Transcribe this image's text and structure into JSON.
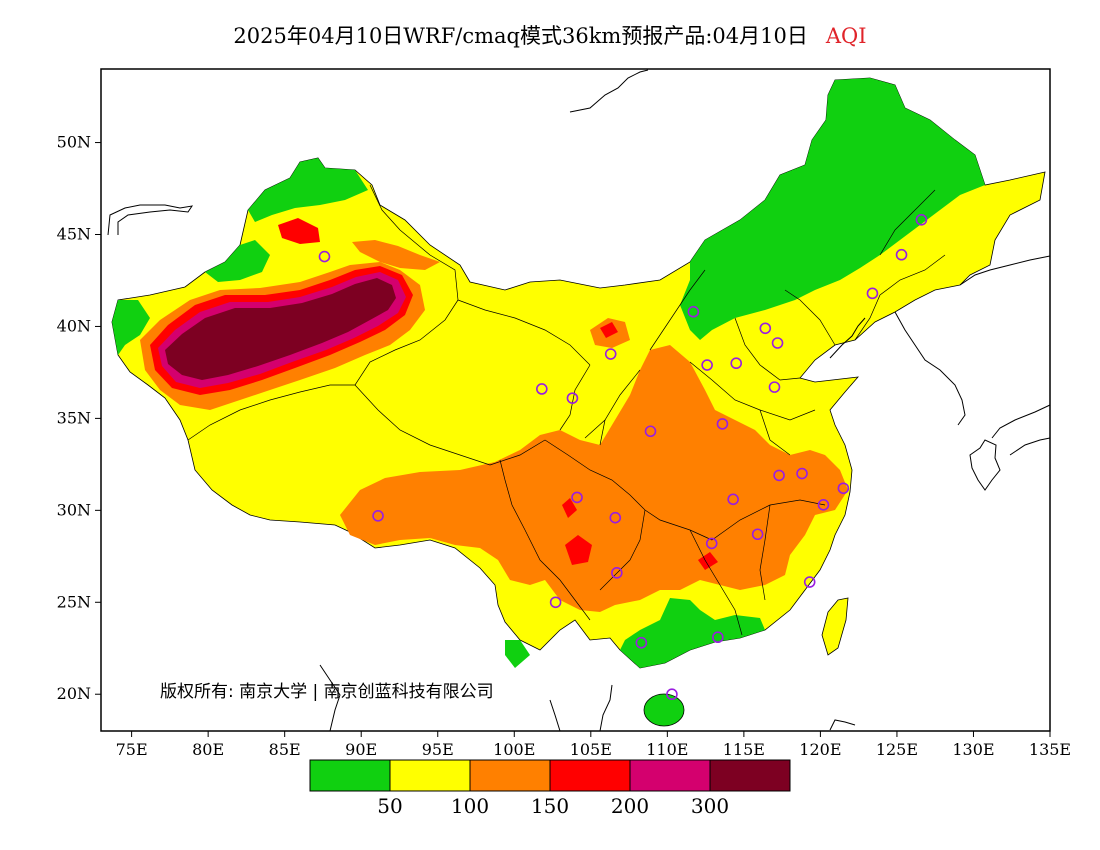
{
  "title": {
    "main": "2025年04月10日WRF/cmaq模式36km预报产品:04月10日",
    "variable": "AQI"
  },
  "map": {
    "lon_range": [
      73,
      135
    ],
    "lat_range": [
      18,
      54
    ],
    "x_ticks": [
      "75E",
      "80E",
      "85E",
      "90E",
      "95E",
      "100E",
      "105E",
      "110E",
      "115E",
      "120E",
      "125E",
      "130E",
      "135E"
    ],
    "y_ticks": [
      "50N",
      "45N",
      "40N",
      "35N",
      "30N",
      "25N",
      "20N"
    ],
    "copyright": "版权所有: 南京大学 | 南京创蓝科技有限公司",
    "stations": [
      [
        87.6,
        43.8
      ],
      [
        91.1,
        29.7
      ],
      [
        101.8,
        36.6
      ],
      [
        103.8,
        36.1
      ],
      [
        106.3,
        38.5
      ],
      [
        104.1,
        30.7
      ],
      [
        106.6,
        29.6
      ],
      [
        106.7,
        26.6
      ],
      [
        102.7,
        25.0
      ],
      [
        108.3,
        22.8
      ],
      [
        110.3,
        20.0
      ],
      [
        113.3,
        23.1
      ],
      [
        112.9,
        28.2
      ],
      [
        115.9,
        28.7
      ],
      [
        114.3,
        30.6
      ],
      [
        117.3,
        31.9
      ],
      [
        118.8,
        32.0
      ],
      [
        121.5,
        31.2
      ],
      [
        120.2,
        30.3
      ],
      [
        119.3,
        26.1
      ],
      [
        113.6,
        34.7
      ],
      [
        117.0,
        36.7
      ],
      [
        114.5,
        38.0
      ],
      [
        112.6,
        37.9
      ],
      [
        116.4,
        39.9
      ],
      [
        117.2,
        39.1
      ],
      [
        111.7,
        40.8
      ],
      [
        108.9,
        34.3
      ],
      [
        123.4,
        41.8
      ],
      [
        125.3,
        43.9
      ],
      [
        126.6,
        45.8
      ]
    ]
  },
  "legend": {
    "colors": [
      "#10d010",
      "#ffff00",
      "#ff8000",
      "#ff0000",
      "#d4006e",
      "#7d0022"
    ],
    "labels": [
      "50",
      "100",
      "150",
      "200",
      "300"
    ]
  }
}
